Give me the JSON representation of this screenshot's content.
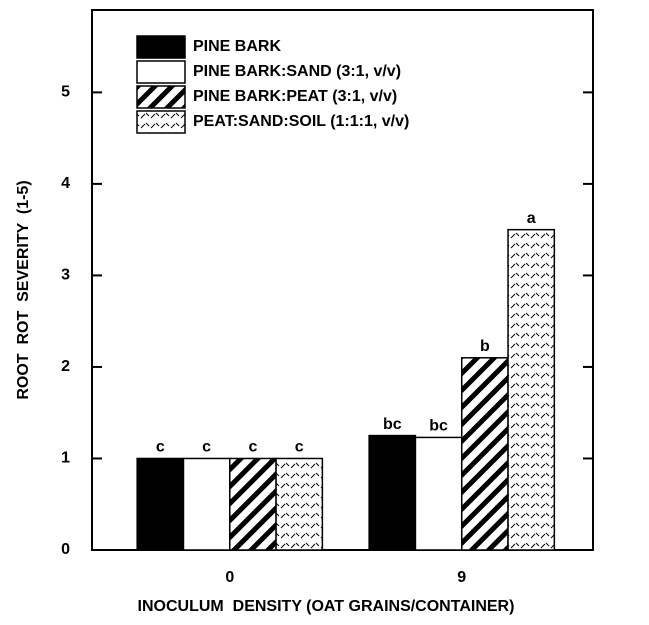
{
  "chart_data": {
    "type": "bar",
    "xlabel": "INOCULUM  DENSITY (OAT GRAINS/CONTAINER)",
    "ylabel": "ROOT  ROT  SEVERITY  (1-5)",
    "categories": [
      "0",
      "9"
    ],
    "series": [
      {
        "name": "PINE BARK",
        "color": "#000000",
        "pattern": "solid",
        "values": [
          1,
          1.25
        ],
        "value_labels": [
          "c",
          "bc"
        ]
      },
      {
        "name": "PINE BARK:SAND (3:1, v/v)",
        "color": "#ffffff",
        "pattern": "solid",
        "values": [
          1,
          1.23
        ],
        "value_labels": [
          "c",
          "bc"
        ]
      },
      {
        "name": "PINE BARK:PEAT (3:1, v/v)",
        "color": "#000000",
        "pattern": "hatch",
        "values": [
          1,
          2.1
        ],
        "value_labels": [
          "c",
          "b"
        ]
      },
      {
        "name": "PEAT:SAND:SOIL (1:1:1, v/v)",
        "color": "#000000",
        "pattern": "dashes",
        "values": [
          1,
          3.5
        ],
        "value_labels": [
          "c",
          "a"
        ]
      }
    ],
    "ylim": [
      0,
      5.9
    ],
    "yticks": [
      0,
      1,
      2,
      3,
      4,
      5
    ],
    "legend": "upper left",
    "grid": false
  }
}
